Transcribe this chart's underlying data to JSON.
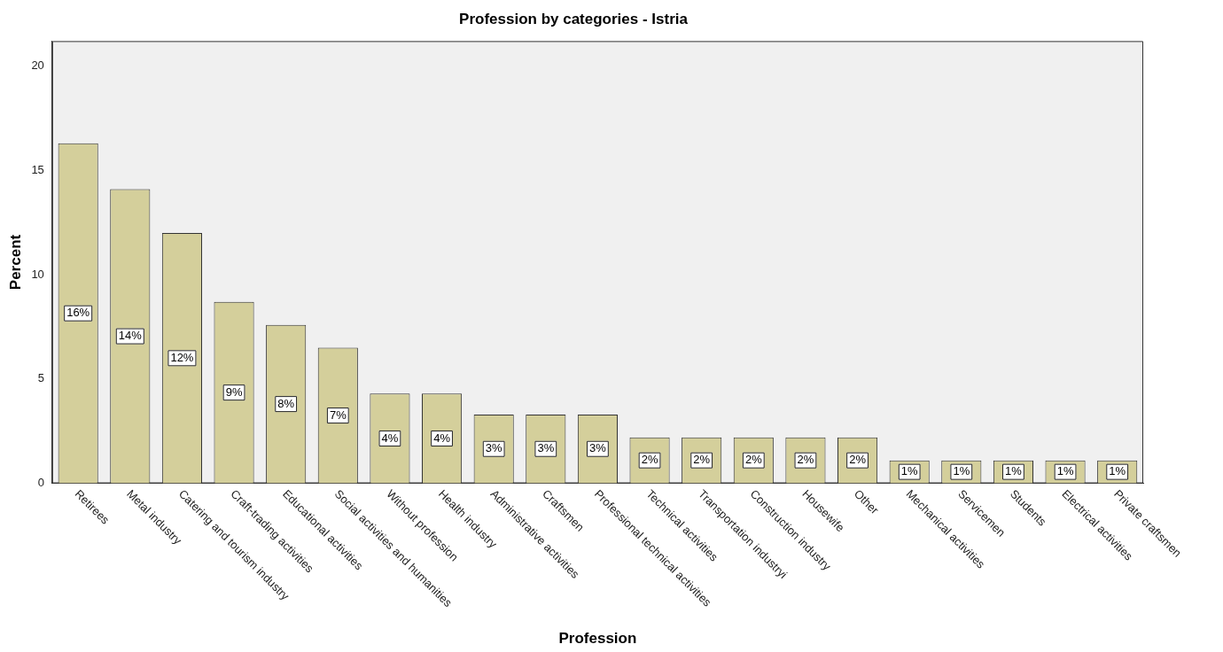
{
  "chart_data": {
    "type": "bar",
    "title": "Profession by categories - Istria",
    "xlabel": "Profession",
    "ylabel": "Percent",
    "categories": [
      "Retirees",
      "Metal industry",
      "Catering and tourism industry",
      "Craft-trading activities",
      "Educational activities",
      "Social activities and humanities",
      "Without profession",
      "Health industry",
      "Administrative activities",
      "Craftsmen",
      "Professional technical activities",
      "Technical activities",
      "Transportation industryi",
      "Construction industry",
      "Housewife",
      "Other",
      "Mechanical activities",
      "Servicemen",
      "Students",
      "Electrical activities",
      "Private craftsmen"
    ],
    "values": [
      16.3,
      14.1,
      12.0,
      8.7,
      7.6,
      6.5,
      4.3,
      4.3,
      3.3,
      3.3,
      3.3,
      2.2,
      2.2,
      2.2,
      2.2,
      2.2,
      1.1,
      1.1,
      1.1,
      1.1,
      1.1
    ],
    "value_labels": [
      "16%",
      "14%",
      "12%",
      "9%",
      "8%",
      "7%",
      "4%",
      "4%",
      "3%",
      "3%",
      "3%",
      "2%",
      "2%",
      "2%",
      "2%",
      "2%",
      "1%",
      "1%",
      "1%",
      "1%",
      "1%"
    ],
    "color": "#d4cf9b",
    "ylim": [
      0,
      21.2
    ],
    "yticks": [
      0,
      5,
      10,
      15,
      20
    ],
    "grid": false,
    "legend": false
  }
}
